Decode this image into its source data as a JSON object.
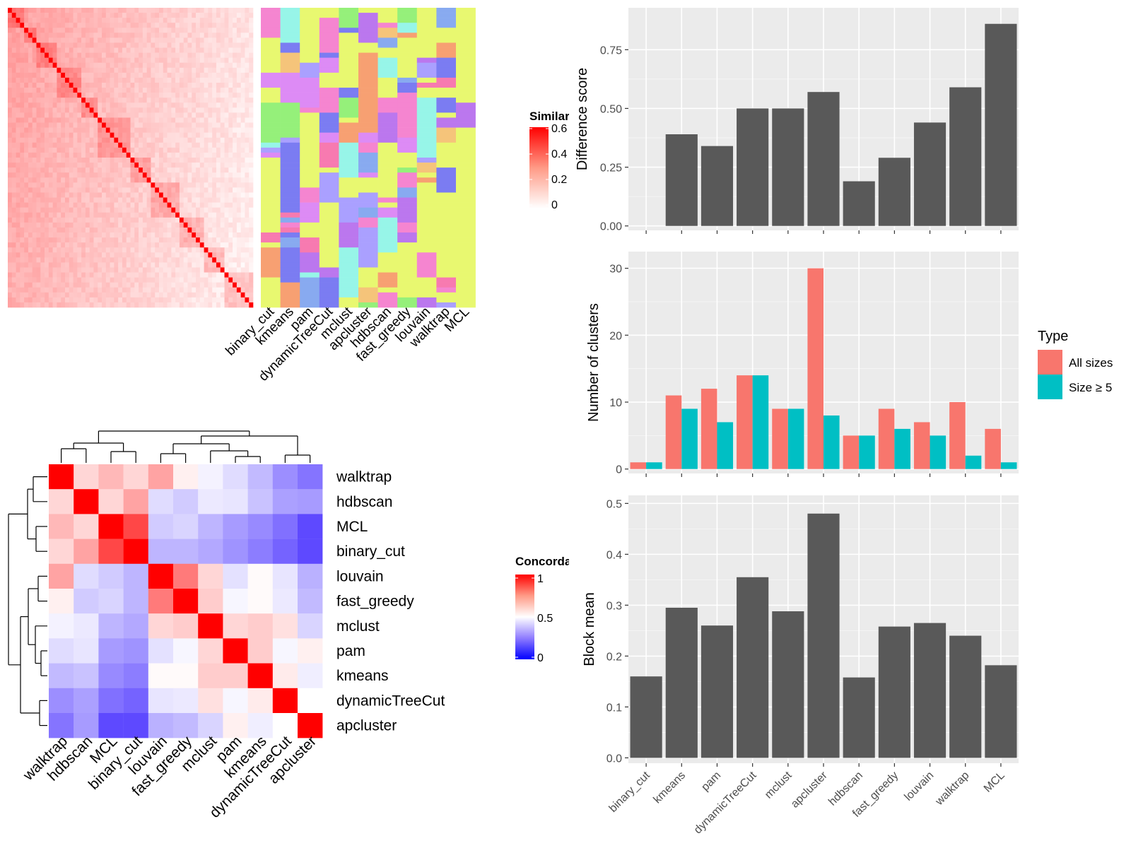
{
  "methods": [
    "binary_cut",
    "kmeans",
    "pam",
    "dynamicTreeCut",
    "mclust",
    "apcluster",
    "hdbscan",
    "fast_greedy",
    "louvain",
    "walktrap",
    "MCL"
  ],
  "similarity_legend": {
    "title": "Similarity",
    "ticks": [
      "0",
      "0.2",
      "0.4",
      "0.6"
    ],
    "tick_values": [
      0,
      0.2,
      0.4,
      0.6
    ],
    "color_low": "#ffffff",
    "color_high": "#ff0000"
  },
  "concordance_legend": {
    "title": "Concordance",
    "ticks": [
      "0",
      "0.5",
      "1"
    ],
    "tick_values": [
      0,
      0.5,
      1
    ],
    "color_low": "#0000ff",
    "color_mid": "#ffffff",
    "color_high": "#ff0000"
  },
  "concordance_order": [
    "walktrap",
    "hdbscan",
    "MCL",
    "binary_cut",
    "louvain",
    "fast_greedy",
    "mclust",
    "pam",
    "kmeans",
    "dynamicTreeCut",
    "apcluster"
  ],
  "concordance_matrix": [
    [
      1.0,
      0.58,
      0.64,
      0.58,
      0.68,
      0.53,
      0.47,
      0.42,
      0.34,
      0.24,
      0.18
    ],
    [
      0.58,
      1.0,
      0.58,
      0.68,
      0.42,
      0.38,
      0.45,
      0.44,
      0.36,
      0.28,
      0.27
    ],
    [
      0.64,
      0.58,
      1.0,
      0.86,
      0.38,
      0.4,
      0.33,
      0.27,
      0.23,
      0.17,
      0.08
    ],
    [
      0.58,
      0.68,
      0.86,
      1.0,
      0.33,
      0.33,
      0.3,
      0.25,
      0.2,
      0.14,
      0.08
    ],
    [
      0.68,
      0.42,
      0.38,
      0.33,
      1.0,
      0.76,
      0.58,
      0.43,
      0.51,
      0.44,
      0.32
    ],
    [
      0.53,
      0.38,
      0.4,
      0.33,
      0.76,
      1.0,
      0.6,
      0.48,
      0.51,
      0.45,
      0.34
    ],
    [
      0.47,
      0.45,
      0.33,
      0.3,
      0.58,
      0.6,
      1.0,
      0.58,
      0.6,
      0.56,
      0.4
    ],
    [
      0.42,
      0.44,
      0.27,
      0.25,
      0.43,
      0.48,
      0.58,
      1.0,
      0.6,
      0.48,
      0.53
    ],
    [
      0.34,
      0.36,
      0.23,
      0.2,
      0.51,
      0.51,
      0.6,
      0.6,
      1.0,
      0.54,
      0.46
    ],
    [
      0.24,
      0.28,
      0.17,
      0.14,
      0.44,
      0.45,
      0.56,
      0.48,
      0.54,
      1.0,
      0.5
    ],
    [
      0.18,
      0.27,
      0.08,
      0.08,
      0.32,
      0.34,
      0.4,
      0.53,
      0.46,
      0.5,
      1.0
    ]
  ],
  "chart_data": [
    {
      "type": "heatmap",
      "name": "similarity_matrix_with_cluster_labels",
      "legend_title": "Similarity",
      "annotation_columns": [
        "binary_cut",
        "kmeans",
        "pam",
        "dynamicTreeCut",
        "mclust",
        "apcluster",
        "hdbscan",
        "fast_greedy",
        "louvain",
        "walktrap",
        "MCL"
      ],
      "value_range": [
        0,
        0.6
      ]
    },
    {
      "type": "heatmap",
      "name": "concordance",
      "legend_title": "Concordance",
      "rows": [
        "walktrap",
        "hdbscan",
        "MCL",
        "binary_cut",
        "louvain",
        "fast_greedy",
        "mclust",
        "pam",
        "kmeans",
        "dynamicTreeCut",
        "apcluster"
      ],
      "columns": [
        "walktrap",
        "hdbscan",
        "MCL",
        "binary_cut",
        "louvain",
        "fast_greedy",
        "mclust",
        "pam",
        "kmeans",
        "dynamicTreeCut",
        "apcluster"
      ],
      "value_range": [
        0,
        1
      ]
    },
    {
      "type": "bar",
      "categories": [
        "binary_cut",
        "kmeans",
        "pam",
        "dynamicTreeCut",
        "mclust",
        "apcluster",
        "hdbscan",
        "fast_greedy",
        "louvain",
        "walktrap",
        "MCL"
      ],
      "values": [
        0.0,
        0.39,
        0.34,
        0.5,
        0.5,
        0.57,
        0.19,
        0.29,
        0.44,
        0.59,
        0.86
      ],
      "ylabel": "Difference score",
      "ylim": [
        0,
        0.9
      ],
      "yticks": [
        0,
        0.25,
        0.5,
        0.75
      ],
      "ytick_labels": [
        "0.00",
        "0.25",
        "0.50",
        "0.75"
      ],
      "bar_color": "#595959"
    },
    {
      "type": "bar",
      "categories": [
        "binary_cut",
        "kmeans",
        "pam",
        "dynamicTreeCut",
        "mclust",
        "apcluster",
        "hdbscan",
        "fast_greedy",
        "louvain",
        "walktrap",
        "MCL"
      ],
      "series": [
        {
          "name": "All sizes",
          "values": [
            1,
            11,
            12,
            14,
            9,
            30,
            5,
            9,
            7,
            10,
            6
          ],
          "color": "#f8766d"
        },
        {
          "name": "Size ≥ 5",
          "values": [
            1,
            9,
            7,
            14,
            9,
            8,
            5,
            6,
            5,
            2,
            1
          ],
          "color": "#00bfc4"
        }
      ],
      "ylabel": "Number of clusters",
      "ylim": [
        0,
        31.5
      ],
      "yticks": [
        0,
        10,
        20,
        30
      ],
      "legend_title": "Type",
      "legend_position": "right"
    },
    {
      "type": "bar",
      "categories": [
        "binary_cut",
        "kmeans",
        "pam",
        "dynamicTreeCut",
        "mclust",
        "apcluster",
        "hdbscan",
        "fast_greedy",
        "louvain",
        "walktrap",
        "MCL"
      ],
      "values": [
        0.16,
        0.295,
        0.26,
        0.355,
        0.288,
        0.48,
        0.158,
        0.258,
        0.265,
        0.24,
        0.182
      ],
      "ylabel": "Block mean",
      "ylim": [
        0,
        0.5
      ],
      "yticks": [
        0,
        0.1,
        0.2,
        0.3,
        0.4,
        0.5
      ],
      "ytick_labels": [
        "0.0",
        "0.1",
        "0.2",
        "0.3",
        "0.4",
        "0.5"
      ],
      "bar_color": "#595959"
    }
  ]
}
